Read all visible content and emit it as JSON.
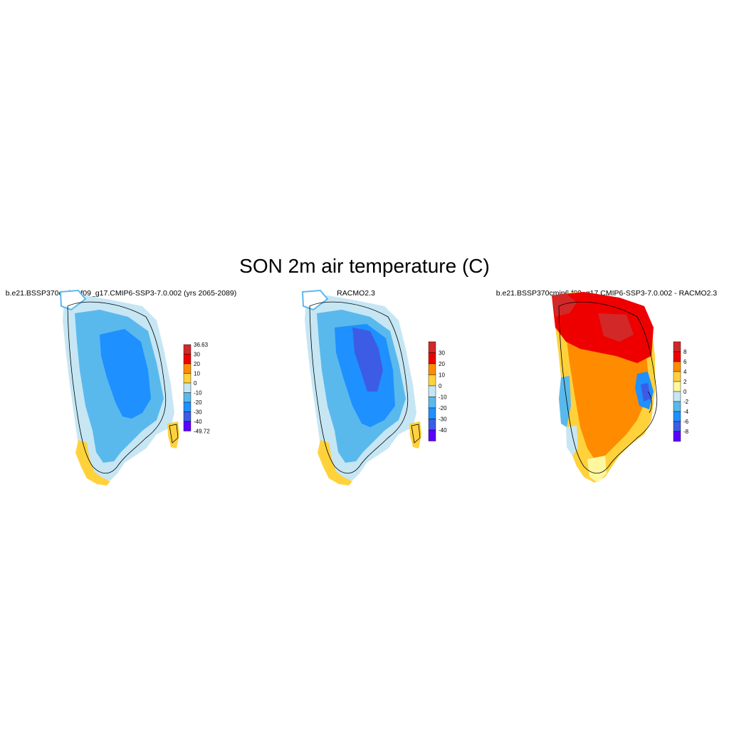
{
  "title": "SON 2m air temperature (C)",
  "colors": {
    "ramp_temp": [
      "#5a00ff",
      "#3d5ce6",
      "#1e90ff",
      "#5ab9ec",
      "#c6e6f4",
      "#ffd23c",
      "#ff8c00",
      "#ee0000",
      "#d22828"
    ],
    "ramp_diff": [
      "#5a00ff",
      "#3d5ce6",
      "#1e90ff",
      "#5ab9ec",
      "#c6e6f4",
      "#fff7a0",
      "#ffd23c",
      "#ff8c00",
      "#ee0000",
      "#d22828"
    ]
  },
  "panels": [
    {
      "title": "b.e21.BSSP370cmip6.f09_g17.CMIP6-SSP3-7.0.002 (yrs 2065-2089)",
      "colorbar": {
        "labels": [
          "36.63",
          "30",
          "20",
          "10",
          "0",
          "-10",
          "-20",
          "-30",
          "-40",
          "-49.72"
        ]
      }
    },
    {
      "title": "RACMO2.3",
      "colorbar": {
        "labels": [
          "30",
          "20",
          "10",
          "0",
          "-10",
          "-20",
          "-30",
          "-40"
        ]
      }
    },
    {
      "title": "b.e21.BSSP370cmip6.f09_g17.CMIP6-SSP3-7.0.002 - RACMO2.3",
      "colorbar": {
        "labels": [
          "8",
          "6",
          "4",
          "2",
          "0",
          "-2",
          "-4",
          "-6",
          "-8"
        ]
      }
    }
  ]
}
